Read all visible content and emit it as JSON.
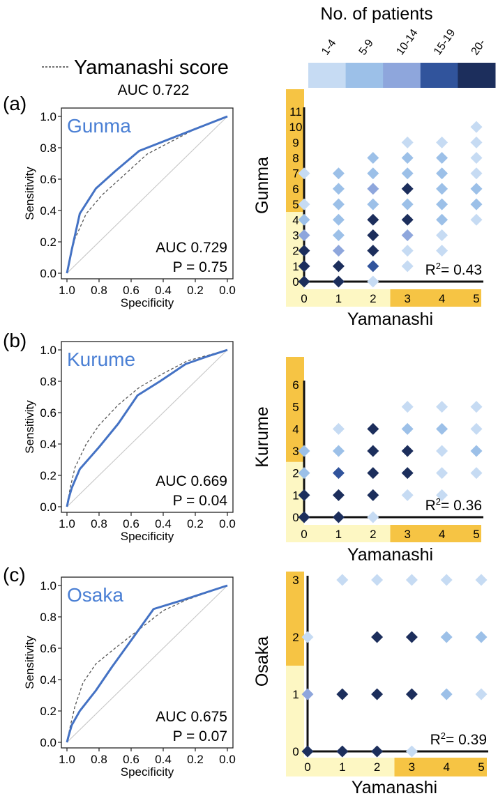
{
  "legend": {
    "title": "No. of patients",
    "bins": [
      {
        "label": "1-4",
        "color": "#c6dbf3"
      },
      {
        "label": "5-9",
        "color": "#9cc0e8"
      },
      {
        "label": "10-14",
        "color": "#8ea6dc"
      },
      {
        "label": "15-19",
        "color": "#31549c"
      },
      {
        "label": "20-",
        "color": "#1c2e5c"
      }
    ],
    "reference_line_label": "Yamanashi score",
    "reference_auc": "AUC 0.722"
  },
  "colors": {
    "roc_model": "#4472c4",
    "roc_reference": "#555555",
    "diagonal": "#c8c8c8",
    "band_light": "#fdf7c3",
    "band_dark": "#f6c444",
    "panel_name": "#4a7fd4"
  },
  "chart_data": [
    {
      "type": "line",
      "panel": "(a)",
      "title": "Gunma",
      "xlabel": "Specificity",
      "ylabel": "Sensitivity",
      "xlim": [
        1.0,
        0.0
      ],
      "ylim": [
        0.0,
        1.0
      ],
      "xticks": [
        "1.0",
        "0.8",
        "0.6",
        "0.4",
        "0.2",
        "0.0"
      ],
      "yticks": [
        "0.0",
        "0.2",
        "0.4",
        "0.6",
        "0.8",
        "1.0"
      ],
      "auc": "AUC 0.729",
      "p": "P = 0.75",
      "series": [
        {
          "x": [
            1.0,
            0.99,
            0.97,
            0.92,
            0.82,
            0.7,
            0.55,
            0.45,
            0.3,
            0.15,
            0.0
          ],
          "y": [
            0.0,
            0.05,
            0.15,
            0.38,
            0.54,
            0.65,
            0.78,
            0.82,
            0.88,
            0.94,
            1.0
          ]
        },
        {
          "x": [
            1.0,
            0.98,
            0.95,
            0.88,
            0.78,
            0.65,
            0.5,
            0.35,
            0.2,
            0.0
          ],
          "y": [
            0.0,
            0.1,
            0.22,
            0.38,
            0.5,
            0.62,
            0.76,
            0.84,
            0.92,
            1.0
          ]
        }
      ]
    },
    {
      "type": "scatter",
      "panel": "(a)",
      "xlabel": "Yamanashi",
      "ylabel": "Gunma",
      "xticks": [
        "0",
        "1",
        "2",
        "3",
        "4",
        "5"
      ],
      "yticks": [
        "0",
        "1",
        "2",
        "3",
        "4",
        "5",
        "6",
        "7",
        "8",
        "9",
        "10",
        "11"
      ],
      "xlim": [
        0,
        5
      ],
      "ylim": [
        0,
        11
      ],
      "y_highlight_from": 5,
      "x_highlight_from": 3,
      "r2": "0.43",
      "points": [
        [
          0,
          0,
          5
        ],
        [
          0,
          1,
          5
        ],
        [
          0,
          2,
          5
        ],
        [
          0,
          3,
          3
        ],
        [
          0,
          4,
          2
        ],
        [
          0,
          5,
          1
        ],
        [
          0,
          7,
          1
        ],
        [
          1,
          0,
          5
        ],
        [
          1,
          1,
          5
        ],
        [
          1,
          2,
          3
        ],
        [
          1,
          3,
          2
        ],
        [
          1,
          4,
          2
        ],
        [
          1,
          5,
          2
        ],
        [
          1,
          6,
          2
        ],
        [
          1,
          7,
          2
        ],
        [
          2,
          0,
          1
        ],
        [
          2,
          1,
          4
        ],
        [
          2,
          2,
          5
        ],
        [
          2,
          3,
          5
        ],
        [
          2,
          4,
          5
        ],
        [
          2,
          5,
          2
        ],
        [
          2,
          6,
          3
        ],
        [
          2,
          7,
          2
        ],
        [
          2,
          8,
          2
        ],
        [
          3,
          1,
          1
        ],
        [
          3,
          2,
          1
        ],
        [
          3,
          3,
          3
        ],
        [
          3,
          4,
          5
        ],
        [
          3,
          5,
          2
        ],
        [
          3,
          6,
          5
        ],
        [
          3,
          7,
          2
        ],
        [
          3,
          8,
          2
        ],
        [
          3,
          9,
          1
        ],
        [
          4,
          2,
          1
        ],
        [
          4,
          3,
          1
        ],
        [
          4,
          4,
          2
        ],
        [
          4,
          5,
          2
        ],
        [
          4,
          6,
          2
        ],
        [
          4,
          7,
          2
        ],
        [
          4,
          8,
          2
        ],
        [
          4,
          9,
          1
        ],
        [
          5,
          4,
          1
        ],
        [
          5,
          5,
          2
        ],
        [
          5,
          6,
          2
        ],
        [
          5,
          7,
          1
        ],
        [
          5,
          8,
          1
        ],
        [
          5,
          9,
          1
        ],
        [
          5,
          10,
          1
        ]
      ]
    },
    {
      "type": "line",
      "panel": "(b)",
      "title": "Kurume",
      "xlabel": "Specificity",
      "ylabel": "Sensitivity",
      "xlim": [
        1.0,
        0.0
      ],
      "ylim": [
        0.0,
        1.0
      ],
      "xticks": [
        "1.0",
        "0.8",
        "0.6",
        "0.4",
        "0.2",
        "0.0"
      ],
      "yticks": [
        "0.0",
        "0.2",
        "0.4",
        "0.6",
        "0.8",
        "1.0"
      ],
      "auc": "AUC 0.669",
      "p": "P = 0.04",
      "series": [
        {
          "x": [
            1.0,
            0.99,
            0.97,
            0.92,
            0.8,
            0.68,
            0.56,
            0.42,
            0.26,
            0.12,
            0.0
          ],
          "y": [
            0.0,
            0.05,
            0.12,
            0.24,
            0.38,
            0.53,
            0.71,
            0.8,
            0.91,
            0.96,
            1.0
          ]
        },
        {
          "x": [
            1.0,
            0.98,
            0.95,
            0.88,
            0.8,
            0.68,
            0.55,
            0.4,
            0.25,
            0.0
          ],
          "y": [
            0.0,
            0.12,
            0.25,
            0.4,
            0.52,
            0.65,
            0.76,
            0.85,
            0.93,
            1.0
          ]
        }
      ]
    },
    {
      "type": "scatter",
      "panel": "(b)",
      "xlabel": "Yamanashi",
      "ylabel": "Kurume",
      "xticks": [
        "0",
        "1",
        "2",
        "3",
        "4",
        "5"
      ],
      "yticks": [
        "0",
        "1",
        "2",
        "3",
        "4",
        "5",
        "6"
      ],
      "xlim": [
        0,
        5
      ],
      "ylim": [
        0,
        6
      ],
      "y_highlight_from": 3,
      "x_highlight_from": 3,
      "r2": "0.36",
      "points": [
        [
          0,
          0,
          5
        ],
        [
          0,
          1,
          5
        ],
        [
          0,
          2,
          2
        ],
        [
          0,
          3,
          2
        ],
        [
          1,
          0,
          5
        ],
        [
          1,
          1,
          5
        ],
        [
          1,
          2,
          4
        ],
        [
          1,
          3,
          2
        ],
        [
          1,
          4,
          1
        ],
        [
          2,
          0,
          1
        ],
        [
          2,
          1,
          5
        ],
        [
          2,
          2,
          5
        ],
        [
          2,
          3,
          5
        ],
        [
          2,
          4,
          5
        ],
        [
          3,
          1,
          1
        ],
        [
          3,
          2,
          5
        ],
        [
          3,
          3,
          5
        ],
        [
          3,
          4,
          2
        ],
        [
          3,
          5,
          1
        ],
        [
          4,
          1,
          1
        ],
        [
          4,
          2,
          1
        ],
        [
          4,
          3,
          1
        ],
        [
          4,
          4,
          2
        ],
        [
          4,
          5,
          1
        ],
        [
          5,
          2,
          1
        ],
        [
          5,
          3,
          2
        ],
        [
          5,
          4,
          1
        ],
        [
          5,
          5,
          1
        ]
      ]
    },
    {
      "type": "line",
      "panel": "(c)",
      "title": "Osaka",
      "xlabel": "Specificity",
      "ylabel": "Sensitivity",
      "xlim": [
        1.0,
        0.0
      ],
      "ylim": [
        0.0,
        1.0
      ],
      "xticks": [
        "1.0",
        "0.8",
        "0.6",
        "0.4",
        "0.2",
        "0.0"
      ],
      "yticks": [
        "0.0",
        "0.2",
        "0.4",
        "0.6",
        "0.8",
        "1.0"
      ],
      "auc": "AUC 0.675",
      "p": "P = 0.07",
      "series": [
        {
          "x": [
            1.0,
            0.99,
            0.97,
            0.92,
            0.82,
            0.72,
            0.6,
            0.46,
            0.3,
            0.15,
            0.0
          ],
          "y": [
            0.0,
            0.04,
            0.11,
            0.2,
            0.33,
            0.48,
            0.65,
            0.85,
            0.9,
            0.95,
            1.0
          ]
        },
        {
          "x": [
            1.0,
            0.98,
            0.95,
            0.9,
            0.82,
            0.7,
            0.55,
            0.4,
            0.25,
            0.0
          ],
          "y": [
            0.0,
            0.1,
            0.23,
            0.38,
            0.5,
            0.6,
            0.72,
            0.84,
            0.91,
            1.0
          ]
        }
      ]
    },
    {
      "type": "scatter",
      "panel": "(c)",
      "xlabel": "Yamanashi",
      "ylabel": "Osaka",
      "xticks": [
        "0",
        "1",
        "2",
        "3",
        "4",
        "5"
      ],
      "yticks": [
        "0",
        "1",
        "2",
        "3"
      ],
      "xlim": [
        0,
        5
      ],
      "ylim": [
        0,
        3
      ],
      "y_highlight_from": 2,
      "x_highlight_from": 3,
      "r2": "0.39",
      "points": [
        [
          0,
          0,
          5
        ],
        [
          0,
          1,
          3
        ],
        [
          0,
          2,
          1
        ],
        [
          1,
          0,
          5
        ],
        [
          1,
          1,
          5
        ],
        [
          1,
          3,
          1
        ],
        [
          2,
          0,
          5
        ],
        [
          2,
          1,
          5
        ],
        [
          2,
          2,
          5
        ],
        [
          2,
          3,
          1
        ],
        [
          3,
          0,
          1
        ],
        [
          3,
          1,
          5
        ],
        [
          3,
          2,
          5
        ],
        [
          3,
          3,
          1
        ],
        [
          4,
          1,
          2
        ],
        [
          4,
          2,
          2
        ],
        [
          4,
          3,
          1
        ],
        [
          5,
          1,
          1
        ],
        [
          5,
          2,
          2
        ],
        [
          5,
          3,
          1
        ]
      ]
    }
  ]
}
